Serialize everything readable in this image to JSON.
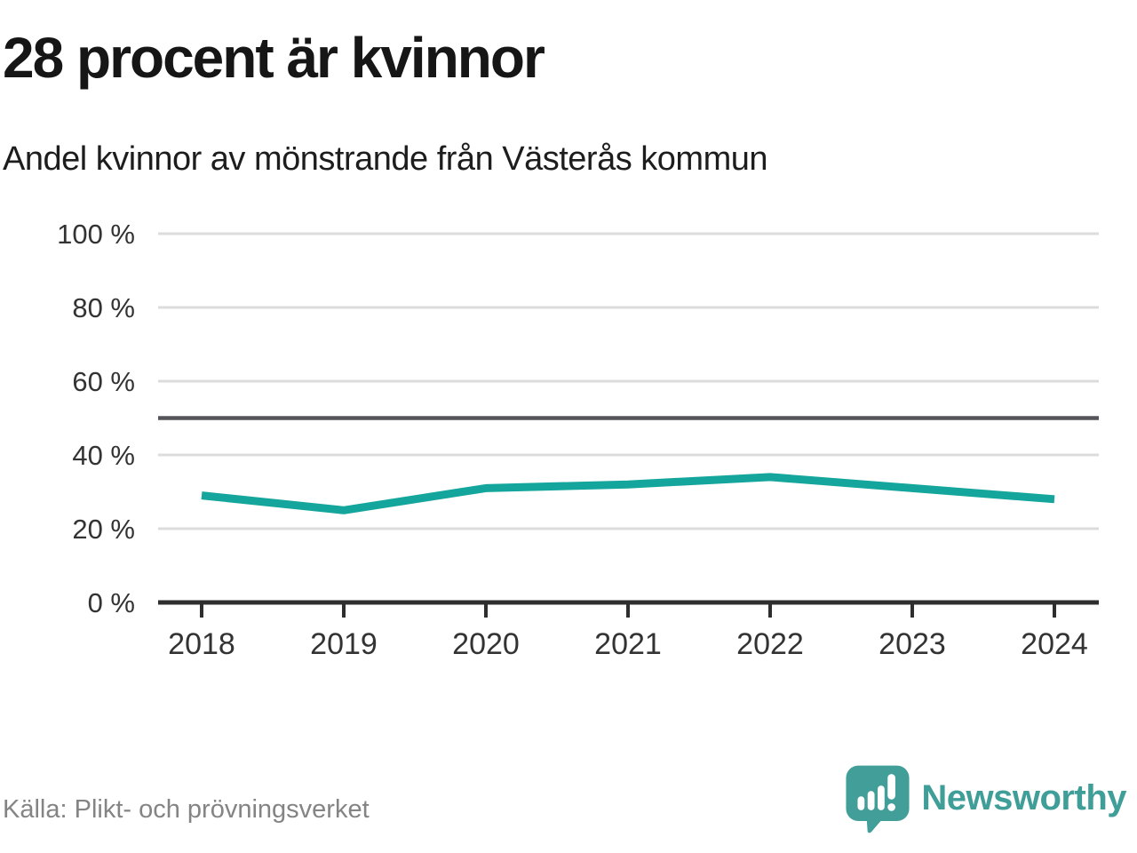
{
  "header": {
    "title": "28 procent är kvinnor",
    "subtitle": "Andel kvinnor av mönstrande från Västerås kommun"
  },
  "chart_data": {
    "type": "line",
    "title": "28 procent är kvinnor",
    "subtitle": "Andel kvinnor av mönstrande från Västerås kommun",
    "categories": [
      "2018",
      "2019",
      "2020",
      "2021",
      "2022",
      "2023",
      "2024"
    ],
    "series": [
      {
        "name": "Andel kvinnor av mönstrande",
        "values": [
          29,
          25,
          31,
          32,
          34,
          31,
          28
        ]
      }
    ],
    "ylim": [
      0,
      100
    ],
    "yticks": [
      0,
      20,
      40,
      60,
      80,
      100
    ],
    "ytick_labels": [
      "0 %",
      "20 %",
      "40 %",
      "60 %",
      "80 %",
      "100 %"
    ],
    "reference_line": 50,
    "grid": true,
    "legend": "none",
    "colors": {
      "line": "#14a69d",
      "reference_line": "#54545a",
      "gridline": "#dcdcdc",
      "axis": "#2e2e2e",
      "tick_label": "#333333"
    }
  },
  "footer": {
    "source": "Källa: Plikt- och prövningsverket",
    "brand": "Newsworthy"
  }
}
